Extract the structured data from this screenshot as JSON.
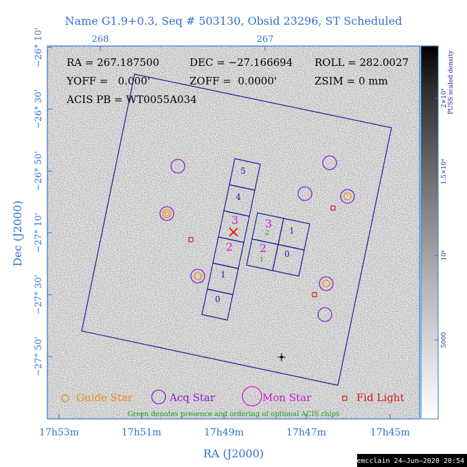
{
  "title": "Name G1.9+0.3, Seq # 503130, Obsid 23296, ST Scheduled",
  "pointing": {
    "line1": {
      "ra": "RA = 267.187500",
      "dec": "DEC = −27.166694",
      "roll": "ROLL = 282.0027"
    },
    "line2": {
      "yoff": "YOFF =   0.000'",
      "zoff": "ZOFF =  0.0000'",
      "zsim": "ZSIM = 0 mm"
    },
    "line3": {
      "acis_pb": "ACIS PB = WT0055A034"
    }
  },
  "axes": {
    "xlabel": "RA (J2000)",
    "ylabel": "Dec (J2000)",
    "top_ticks": [
      "268",
      "267"
    ],
    "bottom_ticks": [
      "17h53m",
      "17h51m",
      "17h49m",
      "17h47m",
      "17h45m"
    ],
    "left_ticks": [
      "−26° 10'",
      "−26° 30'",
      "−26° 50'",
      "−27° 10'",
      "−27° 30'",
      "−27° 50'"
    ]
  },
  "colorbar": {
    "label_line1": "PUSS scaled density",
    "label_line2": "",
    "ticks": [
      "2×10⁴",
      "1.5×10⁴",
      "10⁴",
      "5000"
    ]
  },
  "chips": {
    "i_array": [
      "5",
      "4",
      "3",
      "2",
      "1",
      "0"
    ],
    "s_array": [
      "3",
      "1",
      "2",
      "0"
    ],
    "optional_order": [
      "2",
      "1"
    ]
  },
  "legend": {
    "guide": "Guide Star",
    "acq": "Acq Star",
    "mon": "Mon Star",
    "fid": "Fid Light",
    "note": "Green denotes presence and ordering of optional ACIS chips"
  },
  "footer": "emcclain 24–Jun–2020 20:54",
  "colors": {
    "frame": "#2f6fd0",
    "chip_outline": "#1a1a9a",
    "guide": "#f08a1a",
    "acq": "#8a1ad0",
    "mon": "#d01ad0",
    "fid": "#d01a1a",
    "optional": "#1a9a1a",
    "target": "#e02020"
  }
}
